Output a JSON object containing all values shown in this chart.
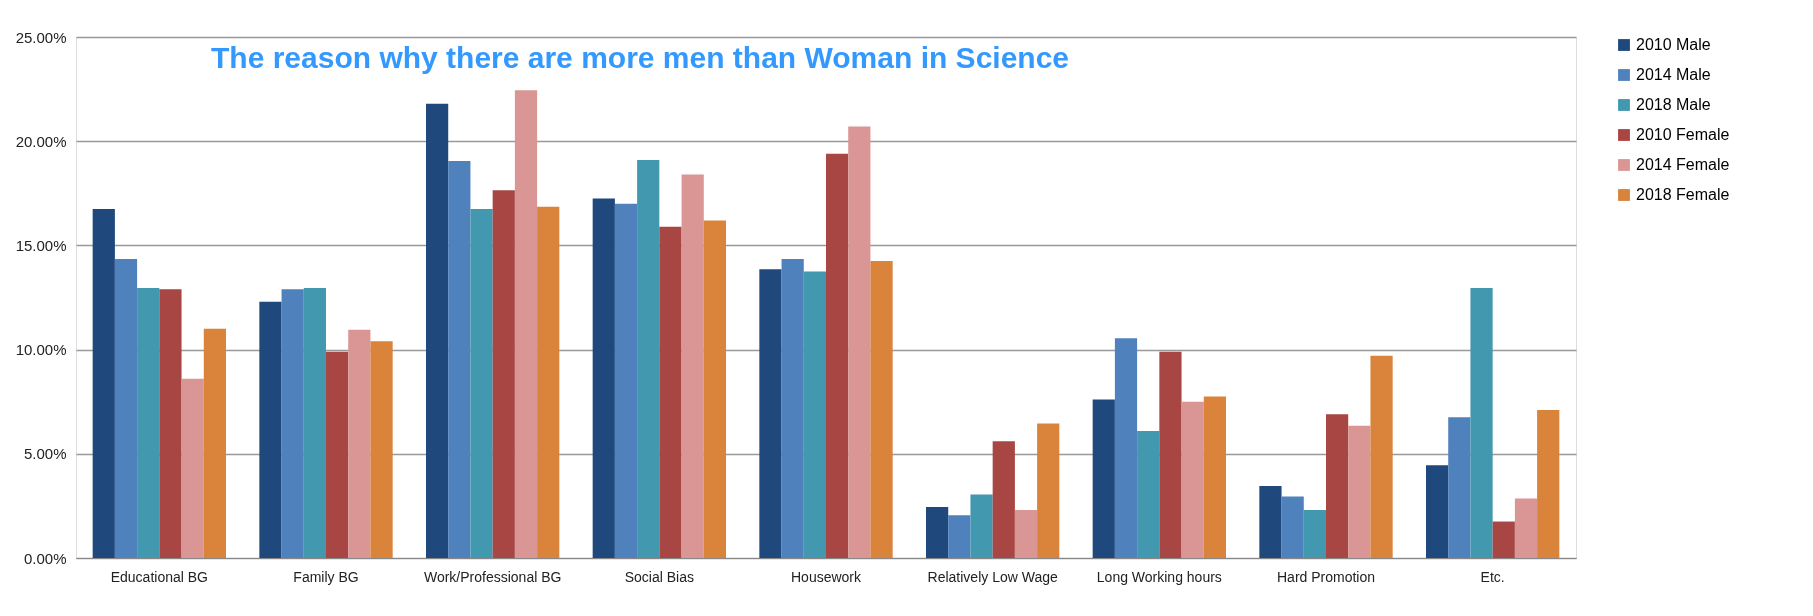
{
  "chart_data": {
    "type": "bar",
    "title": "The reason why there are more men than Woman in Science",
    "categories": [
      "Educational BG",
      "Family BG",
      "Work/Professional BG",
      "Social Bias",
      "Housework",
      "Relatively Low Wage",
      "Long Working hours",
      "Hard Promotion",
      "Etc."
    ],
    "series": [
      {
        "name": "2010 Male",
        "color": "#1f497d",
        "values": [
          16.75,
          12.3,
          21.8,
          17.25,
          13.85,
          2.45,
          7.6,
          3.45,
          4.45
        ]
      },
      {
        "name": "2014 Male",
        "color": "#4f81bd",
        "values": [
          14.35,
          12.9,
          19.05,
          17.0,
          14.35,
          2.05,
          10.55,
          2.95,
          6.75
        ]
      },
      {
        "name": "2018 Male",
        "color": "#4198af",
        "values": [
          12.95,
          12.95,
          16.75,
          19.1,
          13.75,
          3.05,
          6.1,
          2.3,
          12.95
        ]
      },
      {
        "name": "2010 Female",
        "color": "#a84644",
        "values": [
          12.9,
          9.9,
          17.65,
          15.9,
          19.4,
          5.6,
          9.9,
          6.9,
          1.75
        ]
      },
      {
        "name": "2014 Female",
        "color": "#d99694",
        "values": [
          8.6,
          10.95,
          22.45,
          18.4,
          20.7,
          2.3,
          7.5,
          6.35,
          2.85
        ]
      },
      {
        "name": "2018 Female",
        "color": "#d9833b",
        "values": [
          11.0,
          10.4,
          16.85,
          16.2,
          14.25,
          6.45,
          7.75,
          9.7,
          7.1
        ]
      }
    ],
    "ylim": [
      0,
      25
    ],
    "yticks": [
      {
        "value": 0,
        "label": "0.00%"
      },
      {
        "value": 5,
        "label": "5.00%"
      },
      {
        "value": 10,
        "label": "10.00%"
      },
      {
        "value": 15,
        "label": "15.00%"
      },
      {
        "value": 20,
        "label": "20.00%"
      },
      {
        "value": 25,
        "label": "25.00%"
      }
    ],
    "grid": "y",
    "legend": "right"
  }
}
